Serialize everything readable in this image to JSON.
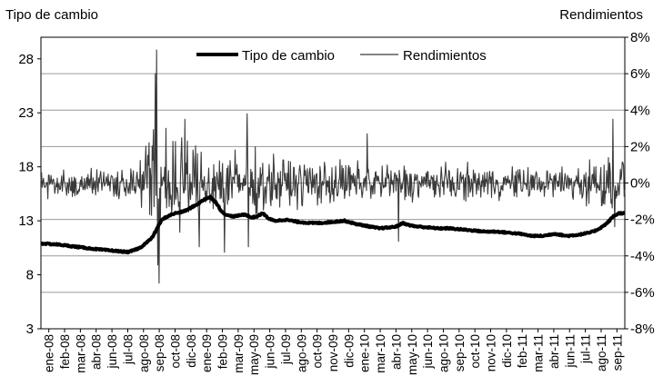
{
  "chart_data": {
    "type": "line",
    "ylabel_left": "Tipo de cambio",
    "ylabel_right": "Rendimientos",
    "y_left": {
      "min": 3,
      "max": 30,
      "ticks": [
        "3",
        "8",
        "13",
        "18",
        "23",
        "28"
      ],
      "tick_values": [
        3,
        8,
        13,
        18,
        23,
        28
      ]
    },
    "y_right": {
      "min": -0.08,
      "max": 0.08,
      "ticks": [
        "-8%",
        "-6%",
        "-4%",
        "-2%",
        "0%",
        "2%",
        "4%",
        "6%",
        "8%"
      ],
      "tick_values": [
        -0.08,
        -0.06,
        -0.04,
        -0.02,
        0,
        0.02,
        0.04,
        0.06,
        0.08
      ]
    },
    "grid": "horizontal",
    "legend_position": "top-center",
    "x_labels": [
      "ene-08",
      "feb-08",
      "mar-08",
      "abr-08",
      "jun-08",
      "jul-08",
      "ago-08",
      "sep-08",
      "oct-08",
      "dic-08",
      "ene-09",
      "feb-09",
      "mar-09",
      "may-09",
      "jun-09",
      "jul-09",
      "ago-09",
      "oct-09",
      "nov-09",
      "dic-09",
      "ene-10",
      "mar-10",
      "abr-10",
      "may-10",
      "jun-10",
      "ago-10",
      "sep-10",
      "oct-10",
      "nov-10",
      "dic-10",
      "feb-11",
      "mar-11",
      "abr-11",
      "jun-11",
      "jul-11",
      "ago-11",
      "sep-11"
    ],
    "series": [
      {
        "name": "Tipo de cambio",
        "axis": "left",
        "color": "#000000",
        "x": [
          0,
          0.03,
          0.06,
          0.09,
          0.11,
          0.13,
          0.15,
          0.17,
          0.19,
          0.2,
          0.203,
          0.206,
          0.21,
          0.22,
          0.23,
          0.24,
          0.25,
          0.26,
          0.27,
          0.28,
          0.29,
          0.3,
          0.31,
          0.32,
          0.33,
          0.35,
          0.36,
          0.37,
          0.38,
          0.39,
          0.4,
          0.42,
          0.44,
          0.46,
          0.48,
          0.5,
          0.52,
          0.54,
          0.56,
          0.58,
          0.6,
          0.61,
          0.62,
          0.63,
          0.64,
          0.66,
          0.68,
          0.7,
          0.72,
          0.74,
          0.76,
          0.78,
          0.8,
          0.82,
          0.84,
          0.86,
          0.88,
          0.9,
          0.92,
          0.94,
          0.95,
          0.96,
          0.97,
          0.98,
          0.99,
          1.0
        ],
        "values": [
          10.9,
          10.8,
          10.6,
          10.4,
          10.3,
          10.2,
          10.1,
          10.5,
          11.4,
          12.4,
          12.7,
          13.0,
          13.2,
          13.5,
          13.7,
          13.8,
          14.0,
          14.3,
          14.6,
          15.0,
          15.2,
          14.7,
          13.8,
          13.5,
          13.4,
          13.6,
          13.3,
          13.4,
          13.7,
          13.2,
          13.0,
          13.1,
          12.9,
          12.8,
          12.8,
          12.9,
          13.0,
          12.7,
          12.5,
          12.3,
          12.4,
          12.5,
          12.8,
          12.6,
          12.5,
          12.4,
          12.3,
          12.3,
          12.2,
          12.1,
          12.0,
          12.0,
          11.9,
          11.8,
          11.6,
          11.6,
          11.8,
          11.6,
          11.7,
          11.9,
          12.1,
          12.4,
          12.8,
          13.4,
          13.7,
          13.7
        ]
      },
      {
        "name": "Rendimientos",
        "axis": "right",
        "color": "#3a3a3a",
        "x": [
          0.0,
          0.1941,
          0.1963,
          0.1985,
          0.2007,
          0.2029,
          0.2138,
          0.2379,
          0.2467,
          0.2708,
          0.3147,
          0.353,
          0.3552,
          0.559,
          0.612,
          0.98,
          0.9825
        ],
        "values": [
          0.001,
          -0.013,
          0.06,
          0.073,
          -0.045,
          -0.055,
          0.03,
          -0.027,
          0.035,
          -0.035,
          -0.038,
          0.038,
          -0.035,
          0.027,
          -0.032,
          0.035,
          -0.024
        ],
        "base_volatility": [
          [
            0.0,
            0.006
          ],
          [
            0.165,
            0.007
          ],
          [
            0.19,
            0.025
          ],
          [
            0.25,
            0.018
          ],
          [
            0.33,
            0.015
          ],
          [
            0.45,
            0.011
          ],
          [
            0.6,
            0.009
          ],
          [
            0.7,
            0.008
          ],
          [
            0.88,
            0.007
          ],
          [
            0.955,
            0.012
          ],
          [
            1.0,
            0.014
          ]
        ]
      }
    ]
  }
}
